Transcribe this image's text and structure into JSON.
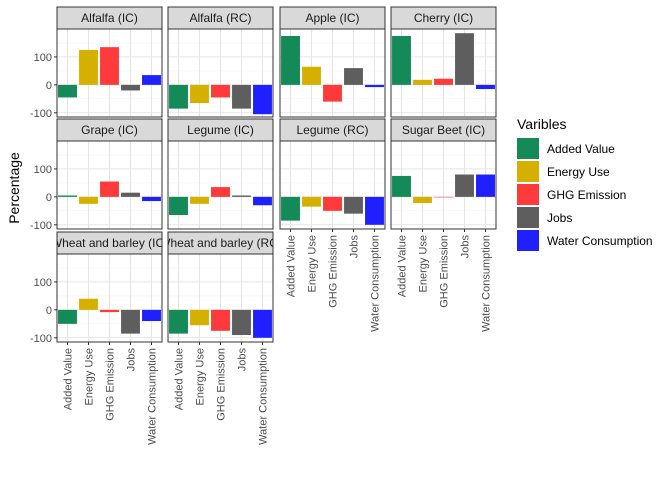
{
  "chart_data": {
    "type": "bar",
    "ylabel": "Percentage",
    "yticks": [
      -100,
      0,
      100
    ],
    "ylim": [
      -115,
      200
    ],
    "grid": true,
    "categories": [
      "Added Value",
      "Energy Use",
      "GHG Emission",
      "Jobs",
      "Water Consumption"
    ],
    "legend": {
      "title": "Varibles",
      "position": "right",
      "entries": [
        "Added Value",
        "Energy Use",
        "GHG Emission",
        "Jobs",
        "Water Consumption"
      ]
    },
    "colors": {
      "Added Value": "#138a57",
      "Energy Use": "#d6b000",
      "GHG Emission": "#ff3a3a",
      "Jobs": "#5e5e5e",
      "Water Consumption": "#2020ff"
    },
    "panels": [
      {
        "title": "Alfalfa (IC)",
        "values": [
          -45,
          125,
          135,
          -20,
          35
        ]
      },
      {
        "title": "Alfalfa (RC)",
        "values": [
          -85,
          -65,
          -45,
          -85,
          -105
        ]
      },
      {
        "title": "Apple (IC)",
        "values": [
          175,
          65,
          -60,
          60,
          -8
        ]
      },
      {
        "title": "Cherry (IC)",
        "values": [
          175,
          18,
          22,
          185,
          -15
        ]
      },
      {
        "title": "Grape (IC)",
        "values": [
          5,
          -25,
          55,
          15,
          -15
        ]
      },
      {
        "title": "Legume (IC)",
        "values": [
          -65,
          -25,
          35,
          5,
          -30
        ]
      },
      {
        "title": "Legume (RC)",
        "values": [
          -85,
          -35,
          -50,
          -60,
          -100
        ]
      },
      {
        "title": "Sugar Beet (IC)",
        "values": [
          75,
          -22,
          0,
          80,
          80
        ]
      },
      {
        "title": "Wheat and barley (IC)",
        "values": [
          -50,
          40,
          -8,
          -85,
          -40
        ]
      },
      {
        "title": "Wheat and barley (RC)",
        "values": [
          -85,
          -55,
          -75,
          -90,
          -100
        ]
      }
    ]
  }
}
